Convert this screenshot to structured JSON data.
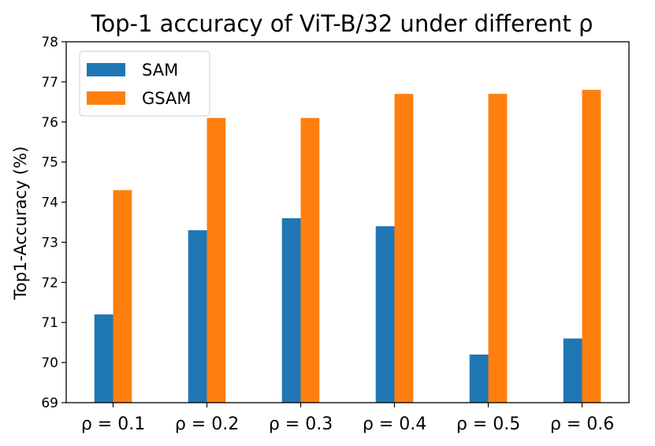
{
  "chart_data": {
    "type": "bar",
    "title": "Top-1 accuracy of ViT-B/32 under different ρ",
    "xlabel": "",
    "ylabel": "Top1-Accuracy (%)",
    "ylim": [
      69,
      78
    ],
    "yticks": [
      69,
      70,
      71,
      72,
      73,
      74,
      75,
      76,
      77,
      78
    ],
    "categories": [
      "ρ = 0.1",
      "ρ = 0.2",
      "ρ = 0.3",
      "ρ = 0.4",
      "ρ = 0.5",
      "ρ = 0.6"
    ],
    "series": [
      {
        "name": "SAM",
        "color": "#1f77b4",
        "values": [
          71.2,
          73.3,
          73.6,
          73.4,
          70.2,
          70.6
        ]
      },
      {
        "name": "GSAM",
        "color": "#ff7f0e",
        "values": [
          74.3,
          76.1,
          76.1,
          76.7,
          76.7,
          76.8
        ]
      }
    ],
    "legend": "top-left",
    "grid": false
  }
}
